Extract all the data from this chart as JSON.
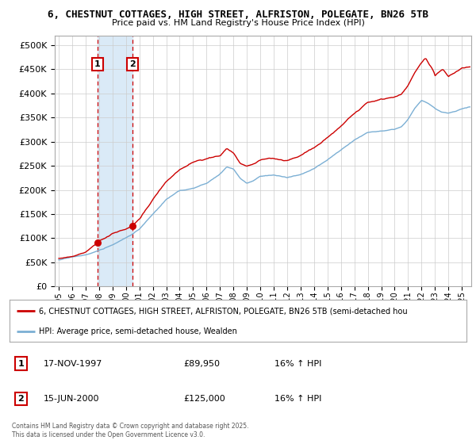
{
  "title_line1": "6, CHESTNUT COTTAGES, HIGH STREET, ALFRISTON, POLEGATE, BN26 5TB",
  "title_line2": "Price paid vs. HM Land Registry's House Price Index (HPI)",
  "ytick_vals": [
    0,
    50000,
    100000,
    150000,
    200000,
    250000,
    300000,
    350000,
    400000,
    450000,
    500000
  ],
  "ylim": [
    0,
    520000
  ],
  "xlim_start": 1994.7,
  "xlim_end": 2025.7,
  "purchase1_date": 1997.88,
  "purchase1_price": 89950,
  "purchase2_date": 2000.46,
  "purchase2_price": 125000,
  "hpi_color": "#7bafd4",
  "price_color": "#cc0000",
  "shading_color": "#daeaf7",
  "legend_label_price": "6, CHESTNUT COTTAGES, HIGH STREET, ALFRISTON, POLEGATE, BN26 5TB (semi-detached hou",
  "legend_label_hpi": "HPI: Average price, semi-detached house, Wealden",
  "table_row1": [
    "1",
    "17-NOV-1997",
    "£89,950",
    "16% ↑ HPI"
  ],
  "table_row2": [
    "2",
    "15-JUN-2000",
    "£125,000",
    "16% ↑ HPI"
  ],
  "footer": "Contains HM Land Registry data © Crown copyright and database right 2025.\nThis data is licensed under the Open Government Licence v3.0.",
  "background_color": "#ffffff",
  "grid_color": "#cccccc"
}
